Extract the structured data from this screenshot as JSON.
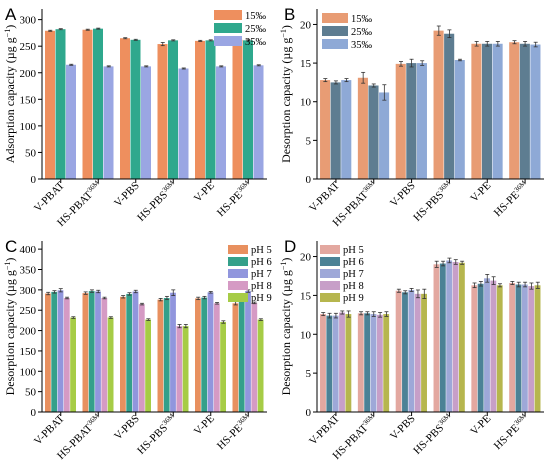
{
  "chart_data": [
    {
      "panel": "A",
      "type": "bar",
      "ylabel": "Adsorption capacity (µg g",
      "ylabel_sup": "−1",
      "ylabel_end": ")",
      "ylim": [
        0,
        320
      ],
      "yticks": [
        0,
        50,
        100,
        150,
        200,
        250,
        300
      ],
      "categories": [
        "V-PBAT",
        "HS-PBAT",
        "V-PBS",
        "HS-PBS",
        "V-PE",
        "HS-PE"
      ],
      "category_sup": [
        "",
        "36M",
        "",
        "36M",
        "",
        "36M"
      ],
      "legend_position": "top-right",
      "series": [
        {
          "name": "15‰",
          "color": "#ee8f5e",
          "values": [
            279,
            281,
            265,
            254,
            260,
            262
          ],
          "errors": [
            1,
            1,
            1,
            3,
            1,
            1
          ]
        },
        {
          "name": "25‰",
          "color": "#2fa88d",
          "values": [
            282,
            283,
            262,
            261,
            261,
            261
          ],
          "errors": [
            1,
            1,
            1,
            1,
            1,
            1
          ]
        },
        {
          "name": "35‰",
          "color": "#9aa6e3",
          "values": [
            215,
            212,
            212,
            208,
            212,
            214
          ],
          "errors": [
            1,
            1,
            1,
            1,
            1,
            1
          ]
        }
      ]
    },
    {
      "panel": "B",
      "type": "bar",
      "ylabel": "Desorption capacity (µg g",
      "ylabel_sup": "−1",
      "ylabel_end": ")",
      "ylim": [
        0,
        22
      ],
      "yticks": [
        0,
        5,
        10,
        15,
        20
      ],
      "categories": [
        "V-PBAT",
        "HS-PBAT",
        "V-PBS",
        "HS-PBS",
        "V-PE",
        "HS-PE"
      ],
      "category_sup": [
        "",
        "36M",
        "",
        "36M",
        "",
        "36M"
      ],
      "legend_position": "top-left",
      "series": [
        {
          "name": "15‰",
          "color": "#e89c74",
          "values": [
            12.8,
            13.1,
            14.9,
            19.2,
            17.5,
            17.7
          ],
          "errors": [
            0.2,
            0.7,
            0.3,
            0.6,
            0.3,
            0.2
          ]
        },
        {
          "name": "25‰",
          "color": "#5e7d91",
          "values": [
            12.5,
            12.1,
            15.0,
            18.8,
            17.5,
            17.5
          ],
          "errors": [
            0.2,
            0.2,
            0.5,
            0.5,
            0.3,
            0.3
          ]
        },
        {
          "name": "35‰",
          "color": "#8ea9d6",
          "values": [
            12.8,
            11.2,
            15.0,
            15.4,
            17.5,
            17.4
          ],
          "errors": [
            0.2,
            1.0,
            0.3,
            0.1,
            0.3,
            0.3
          ]
        }
      ]
    },
    {
      "panel": "C",
      "type": "bar",
      "ylabel": "Desorption capacity (µg g",
      "ylabel_sup": "−1",
      "ylabel_end": ")",
      "ylim": [
        0,
        420
      ],
      "yticks": [
        0,
        50,
        100,
        150,
        200,
        250,
        300,
        350,
        400
      ],
      "categories": [
        "V-PBAT",
        "HS-PBAT",
        "V-PBS",
        "HS-PBS",
        "V-PE",
        "HS-PE"
      ],
      "category_sup": [
        "",
        "36M",
        "",
        "36M",
        "",
        "36M"
      ],
      "legend_position": "top-right",
      "series": [
        {
          "name": "pH 5",
          "color": "#e8905f",
          "values": [
            291,
            292,
            283,
            276,
            279,
            267
          ],
          "errors": [
            3,
            3,
            3,
            3,
            3,
            4
          ]
        },
        {
          "name": "pH 6",
          "color": "#34a08a",
          "values": [
            295,
            297,
            290,
            280,
            281,
            279
          ],
          "errors": [
            3,
            3,
            3,
            4,
            3,
            4
          ]
        },
        {
          "name": "pH 7",
          "color": "#9196dd",
          "values": [
            299,
            296,
            296,
            293,
            294,
            297
          ],
          "errors": [
            4,
            3,
            3,
            7,
            2,
            3
          ]
        },
        {
          "name": "pH 8",
          "color": "#d59ac4",
          "values": [
            280,
            280,
            265,
            211,
            267,
            268
          ],
          "errors": [
            2,
            2,
            2,
            4,
            2,
            2
          ]
        },
        {
          "name": "pH 9",
          "color": "#a6cc46",
          "values": [
            232,
            232,
            227,
            211,
            221,
            227
          ],
          "errors": [
            2,
            2,
            2,
            4,
            3,
            2
          ]
        }
      ]
    },
    {
      "panel": "D",
      "type": "bar",
      "ylabel": "Desorption capacity (µg g",
      "ylabel_sup": "−1",
      "ylabel_end": ")",
      "ylim": [
        0,
        22
      ],
      "yticks": [
        0,
        5,
        10,
        15,
        20
      ],
      "categories": [
        "V-PBAT",
        "HS-PBAT",
        "V-PBS",
        "HS-PBS",
        "V-PE",
        "HS-PE"
      ],
      "category_sup": [
        "",
        "36M",
        "",
        "36M",
        "",
        "36M"
      ],
      "legend_position": "top-left",
      "series": [
        {
          "name": "pH 5",
          "color": "#e3a8a0",
          "values": [
            12.6,
            12.7,
            15.6,
            19.0,
            16.3,
            16.6
          ],
          "errors": [
            0.2,
            0.2,
            0.2,
            0.4,
            0.3,
            0.2
          ]
        },
        {
          "name": "pH 6",
          "color": "#4c8296",
          "values": [
            12.4,
            12.7,
            15.4,
            19.1,
            16.5,
            16.4
          ],
          "errors": [
            0.3,
            0.2,
            0.2,
            0.3,
            0.3,
            0.3
          ]
        },
        {
          "name": "pH 7",
          "color": "#9ea8d8",
          "values": [
            12.4,
            12.6,
            15.7,
            19.5,
            17.2,
            16.4
          ],
          "errors": [
            0.3,
            0.3,
            0.2,
            0.3,
            0.5,
            0.3
          ]
        },
        {
          "name": "pH 8",
          "color": "#c79fc8",
          "values": [
            12.8,
            12.5,
            15.2,
            19.3,
            16.9,
            16.2
          ],
          "errors": [
            0.2,
            0.3,
            0.5,
            0.3,
            0.5,
            0.4
          ]
        },
        {
          "name": "pH 9",
          "color": "#b6b64e",
          "values": [
            12.6,
            12.6,
            15.2,
            19.2,
            16.3,
            16.3
          ],
          "errors": [
            0.4,
            0.3,
            0.6,
            0.2,
            0.2,
            0.4
          ]
        }
      ]
    }
  ]
}
